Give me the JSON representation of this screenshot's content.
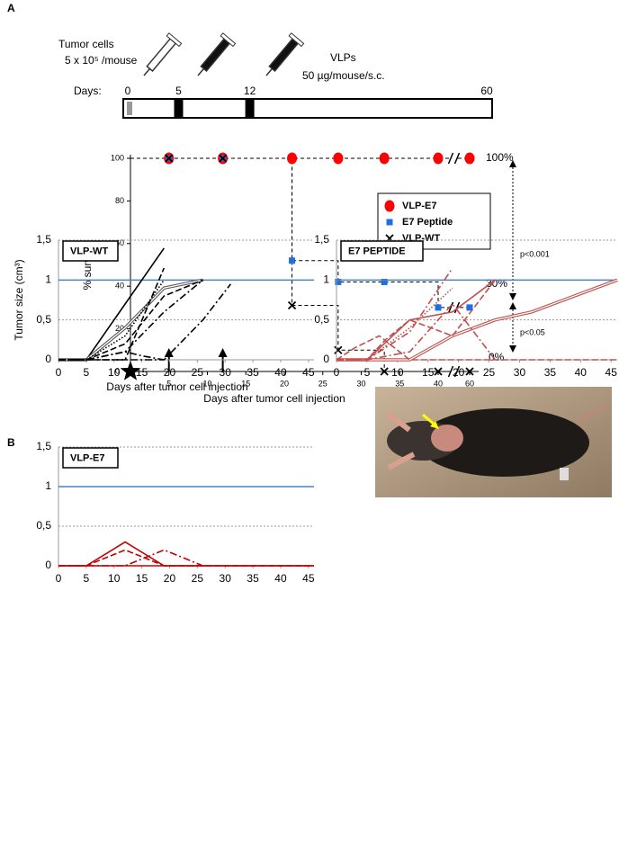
{
  "panels": {
    "a": "A",
    "b": "B"
  },
  "timeline": {
    "tumor_label": "Tumor cells",
    "tumor_dose": "5 x 10⁵ /mouse",
    "vlp_label": "VLPs",
    "vlp_dose": "50 µg/mouse/s.c.",
    "days_label": "Days:",
    "days": [
      0,
      5,
      12,
      60
    ]
  },
  "chart_data": [
    {
      "type": "step",
      "xlabel": "Days after tumor cell injection",
      "ylabel": "% survival",
      "xlim": [
        0,
        60
      ],
      "xticks": [
        5,
        10,
        15,
        20,
        25,
        30,
        35,
        40,
        60
      ],
      "axis_break": true,
      "ylim": [
        0,
        100
      ],
      "yticks": [
        0,
        20,
        40,
        60,
        80,
        100
      ],
      "series": [
        {
          "name": "VLP-E7",
          "color": "#ff0000",
          "marker": "circle",
          "x": [
            5,
            12,
            21,
            27,
            33,
            40,
            60
          ],
          "values": [
            100,
            100,
            100,
            100,
            100,
            100,
            100
          ]
        },
        {
          "name": "E7 Peptide",
          "color": "#1f6fe0",
          "marker": "square",
          "x": [
            5,
            12,
            21,
            27,
            33,
            40,
            60
          ],
          "values": [
            100,
            100,
            52,
            42,
            42,
            30,
            30
          ]
        },
        {
          "name": "VLP-WT",
          "color": "#000000",
          "marker": "x",
          "x": [
            5,
            12,
            21,
            27,
            33,
            40,
            60
          ],
          "values": [
            100,
            100,
            31,
            10,
            0,
            0,
            0
          ]
        }
      ],
      "annotations": [
        "100%",
        "30%",
        "0%",
        "p<0.001",
        "p<0.05"
      ]
    },
    {
      "type": "line",
      "title": "VLP-WT",
      "xlabel": "Days after tumor cell injection",
      "ylabel": "Tumor size (cm³)",
      "xlim": [
        0,
        46
      ],
      "xticks": [
        0,
        5,
        10,
        15,
        20,
        25,
        30,
        35,
        40,
        45
      ],
      "ylim": [
        0,
        1.5
      ],
      "yticks": [
        0,
        {
          "value": 0.5,
          "label": "0,5"
        },
        1,
        {
          "value": 1.5,
          "label": "1,5"
        }
      ],
      "grid": true,
      "hline": 1,
      "hline_color": "#4f81bd",
      "series": [
        {
          "color": "#000000",
          "style": "solid",
          "x": [
            0,
            5,
            19
          ],
          "values": [
            0,
            0,
            1.4
          ]
        },
        {
          "color": "#555555",
          "style": "double",
          "x": [
            0,
            5,
            12,
            19,
            26
          ],
          "values": [
            0,
            0,
            0.4,
            0.9,
            1
          ]
        },
        {
          "color": "#000000",
          "style": "dashed",
          "x": [
            0,
            5,
            12,
            19
          ],
          "values": [
            0,
            0,
            0,
            1.15
          ]
        },
        {
          "color": "#000000",
          "style": "dashed",
          "x": [
            0,
            5,
            12,
            19,
            26
          ],
          "values": [
            0,
            0,
            0.2,
            0.8,
            1
          ]
        },
        {
          "color": "#000000",
          "style": "dotted",
          "x": [
            0,
            5,
            12,
            19
          ],
          "values": [
            0,
            0,
            0.3,
            1
          ]
        },
        {
          "color": "#000000",
          "style": "dashdot",
          "x": [
            0,
            5,
            12,
            19,
            26
          ],
          "values": [
            0,
            0,
            0.1,
            0.6,
            1
          ]
        },
        {
          "color": "#000000",
          "style": "dashdot",
          "x": [
            0,
            5,
            12,
            15,
            19
          ],
          "values": [
            0,
            0,
            0.1,
            0.05,
            0
          ]
        },
        {
          "color": "#000000",
          "style": "dashdot",
          "x": [
            0,
            5,
            12,
            19,
            26,
            31
          ],
          "values": [
            0,
            0,
            0,
            0,
            0.5,
            0.95
          ]
        }
      ]
    },
    {
      "type": "line",
      "title": "E7 PEPTIDE",
      "xlim": [
        0,
        46
      ],
      "xticks": [
        0,
        5,
        10,
        15,
        20,
        25,
        30,
        35,
        40,
        45
      ],
      "ylim": [
        0,
        1.5
      ],
      "yticks": [
        0,
        {
          "value": 0.5,
          "label": "0,5"
        },
        1,
        {
          "value": 1.5,
          "label": "1,5"
        }
      ],
      "grid": true,
      "hline": 1,
      "hline_color": "#4f81bd",
      "series": [
        {
          "color": "#c0504d",
          "style": "solid",
          "x": [
            0,
            5,
            12,
            19,
            26
          ],
          "values": [
            0,
            0,
            0.5,
            0.6,
            1
          ]
        },
        {
          "color": "#c0504d",
          "style": "double",
          "x": [
            0,
            5,
            12,
            19,
            26,
            32,
            46
          ],
          "values": [
            0,
            0,
            0,
            0.3,
            0.5,
            0.6,
            1
          ]
        },
        {
          "color": "#c0504d",
          "style": "dashdot",
          "x": [
            0,
            5,
            12,
            19
          ],
          "values": [
            0,
            0,
            0.35,
            1.15
          ]
        },
        {
          "color": "#c0504d",
          "style": "dotted",
          "x": [
            0,
            5,
            12,
            19
          ],
          "values": [
            0,
            0,
            0.4,
            0.9
          ]
        },
        {
          "color": "#c0504d",
          "style": "dashdot",
          "x": [
            0,
            5,
            12,
            19,
            26
          ],
          "values": [
            0,
            0,
            0.1,
            0.7,
            0
          ]
        },
        {
          "color": "#c0504d",
          "style": "dashed",
          "x": [
            0,
            5,
            8,
            12,
            19,
            26
          ],
          "values": [
            0,
            0,
            0.25,
            0.5,
            0.3,
            1
          ]
        },
        {
          "color": "#c0504d",
          "style": "dashed",
          "x": [
            0,
            3,
            7,
            12,
            46
          ],
          "values": [
            0,
            0.15,
            0.3,
            0,
            0
          ]
        }
      ]
    },
    {
      "type": "line",
      "title": "VLP-E7",
      "xlim": [
        0,
        46
      ],
      "xticks": [
        0,
        5,
        10,
        15,
        20,
        25,
        30,
        35,
        40,
        45
      ],
      "ylim": [
        0,
        1.5
      ],
      "yticks": [
        0,
        {
          "value": 0.5,
          "label": "0,5"
        },
        1,
        {
          "value": 1.5,
          "label": "1,5"
        }
      ],
      "grid": true,
      "hline": 1,
      "hline_color": "#4f81bd",
      "series": [
        {
          "color": "#c00000",
          "style": "solid",
          "x": [
            0,
            46
          ],
          "values": [
            0,
            0
          ]
        },
        {
          "color": "#c00000",
          "style": "solid",
          "x": [
            0,
            5,
            12,
            19,
            46
          ],
          "values": [
            0,
            0,
            0.3,
            0,
            0
          ]
        },
        {
          "color": "#c00000",
          "style": "dashed",
          "x": [
            0,
            5,
            12,
            19,
            46
          ],
          "values": [
            0,
            0,
            0.2,
            0,
            0
          ]
        },
        {
          "color": "#c00000",
          "style": "dashdot",
          "x": [
            0,
            12,
            19,
            26
          ],
          "values": [
            0,
            0,
            0.2,
            0
          ]
        }
      ]
    }
  ]
}
